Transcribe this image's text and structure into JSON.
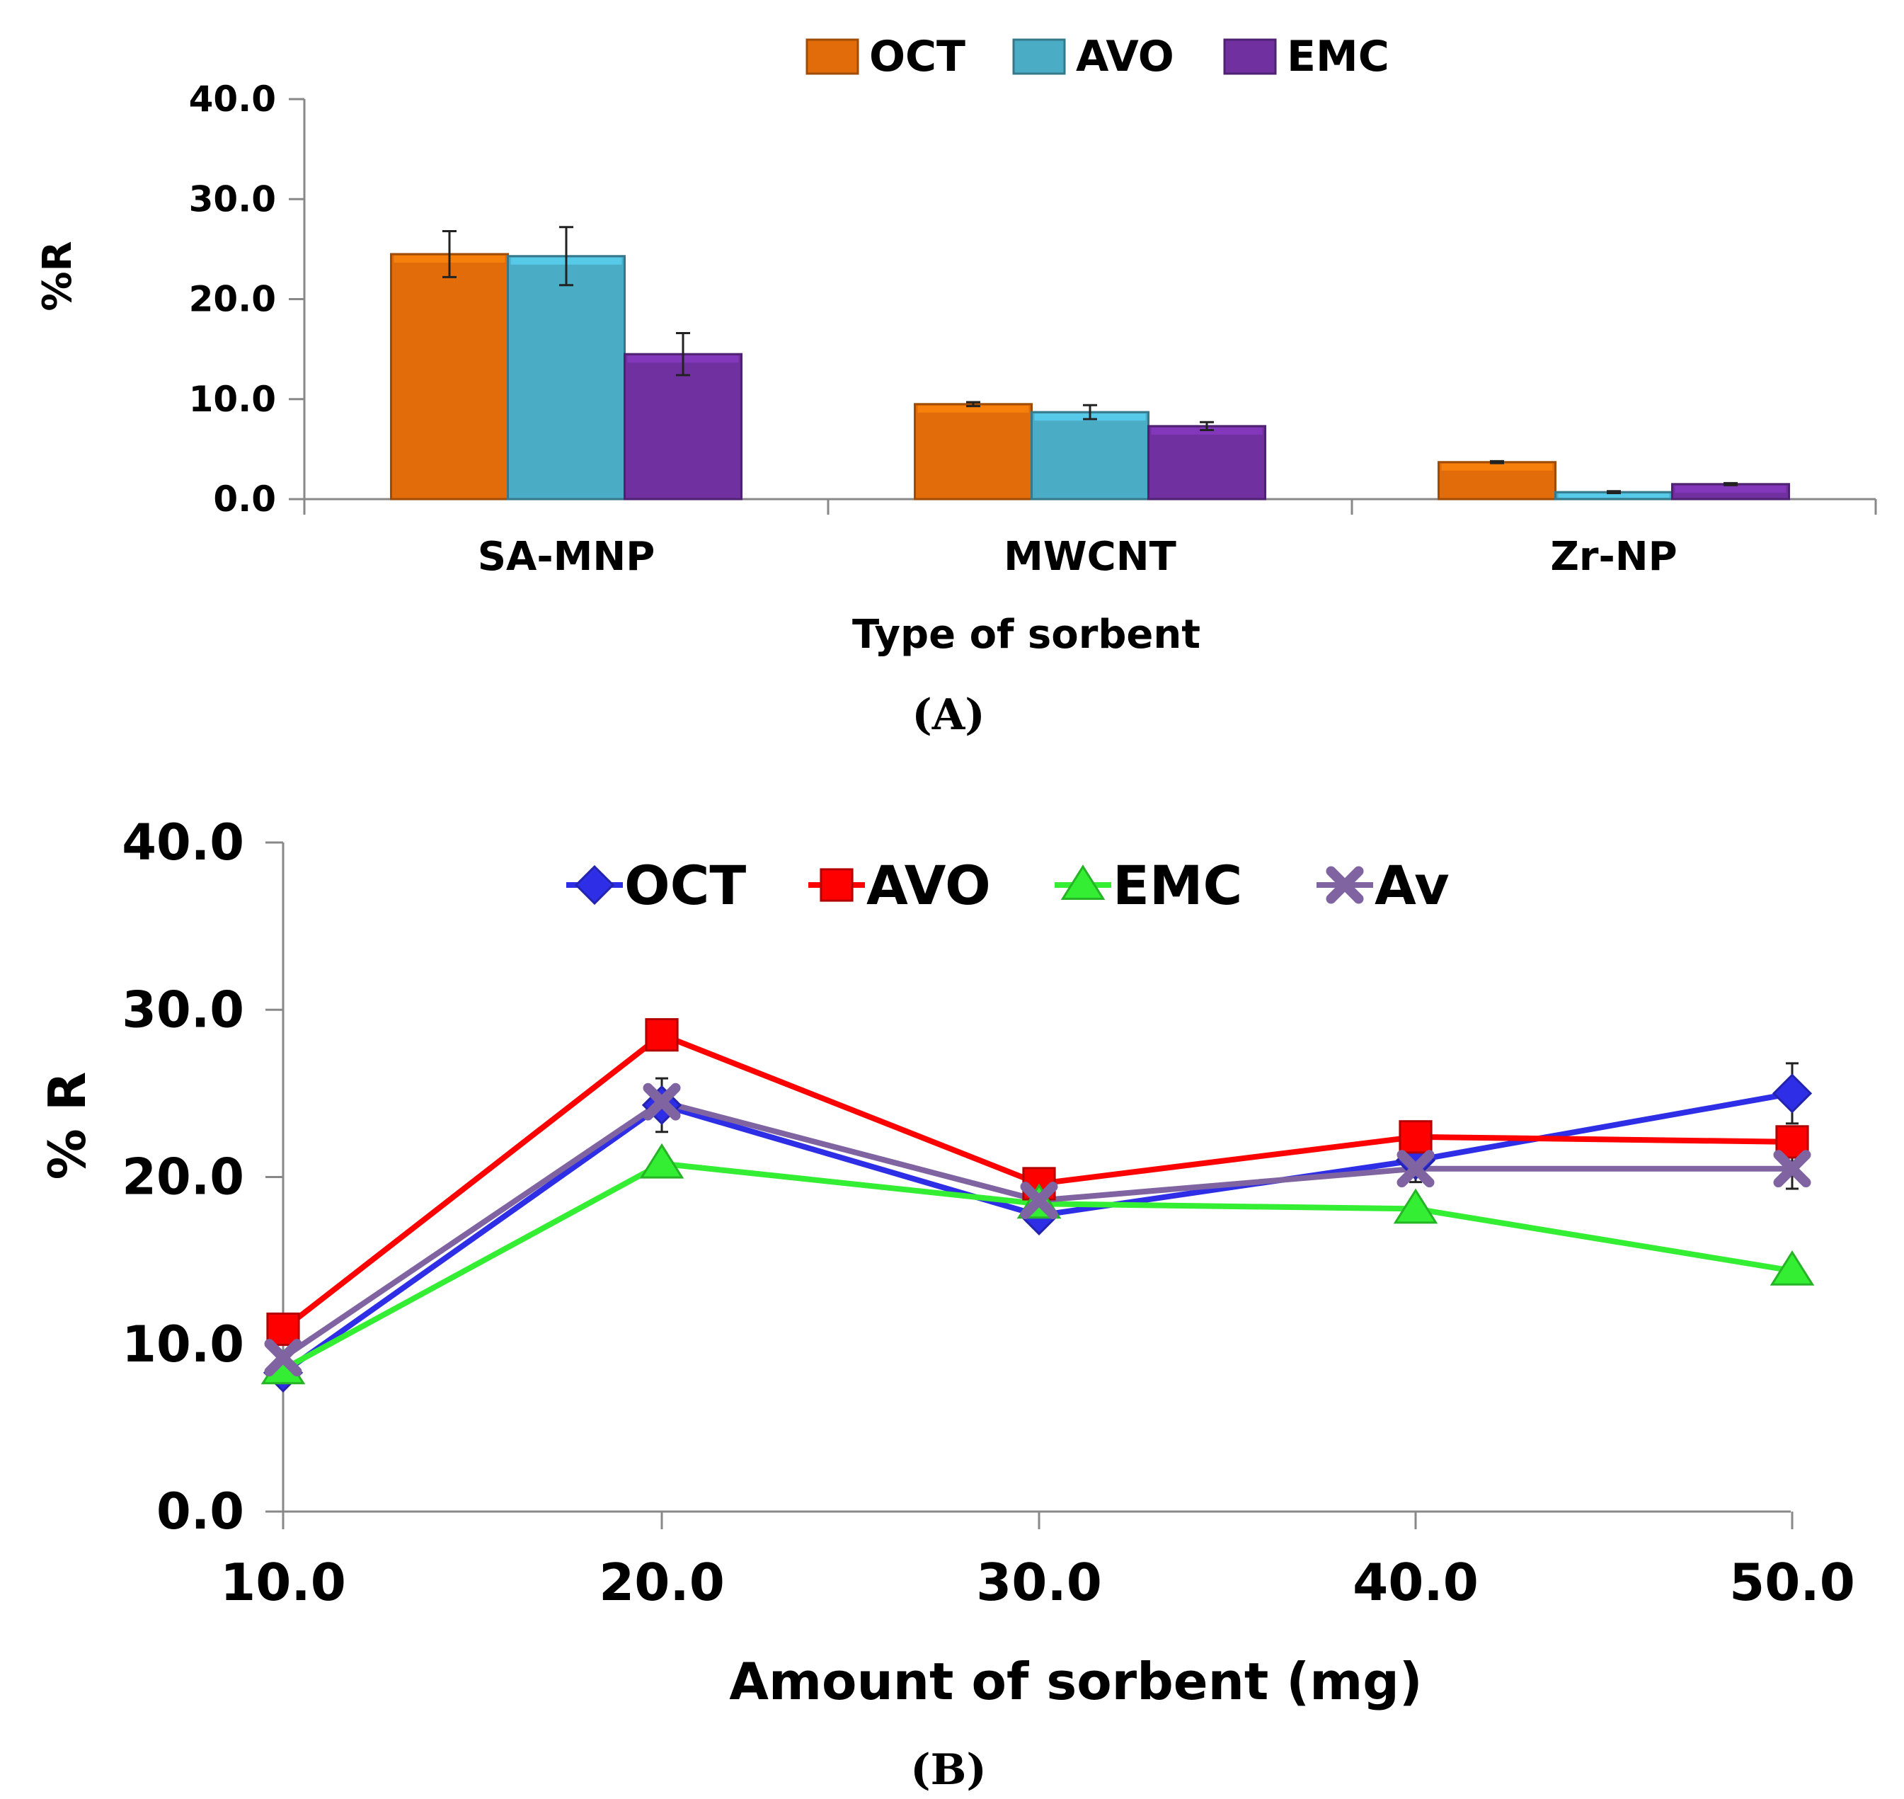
{
  "chart_data": [
    {
      "type": "bar",
      "panel_label": "(A)",
      "xlabel": "Type of sorbent",
      "ylabel": "%R",
      "ylim": [
        0,
        40
      ],
      "yticks": [
        "0.0",
        "10.0",
        "20.0",
        "30.0",
        "40.0"
      ],
      "categories": [
        "SA-MNP",
        "MWCNT",
        "Zr-NP"
      ],
      "series": [
        {
          "name": "OCT",
          "color": "#E36C0A",
          "values": [
            24.5,
            9.5,
            3.7
          ],
          "errors": [
            2.3,
            0.2,
            0.1
          ]
        },
        {
          "name": "AVO",
          "color": "#4BACC6",
          "values": [
            24.3,
            8.7,
            0.7
          ],
          "errors": [
            2.9,
            0.7,
            0.1
          ]
        },
        {
          "name": "EMC",
          "color": "#7030A0",
          "values": [
            14.5,
            7.3,
            1.5
          ],
          "errors": [
            2.1,
            0.4,
            0.1
          ]
        }
      ],
      "legend_position": "top"
    },
    {
      "type": "line",
      "panel_label": "(B)",
      "xlabel": "Amount of sorbent (mg)",
      "ylabel": "% R",
      "ylim": [
        0,
        40
      ],
      "xlim": [
        10,
        50
      ],
      "yticks": [
        "0.0",
        "10.0",
        "20.0",
        "30.0",
        "40.0"
      ],
      "xticks": [
        "10.0",
        "20.0",
        "30.0",
        "40.0",
        "50.0"
      ],
      "x": [
        10,
        20,
        30,
        40,
        50
      ],
      "series": [
        {
          "name": "OCT",
          "color": "#2E2EE6",
          "marker": "diamond",
          "values": [
            8.3,
            24.3,
            17.7,
            21.0,
            25.0
          ],
          "errors": [
            0,
            1.6,
            0,
            0,
            1.8
          ]
        },
        {
          "name": "AVO",
          "color": "#FF0000",
          "marker": "square",
          "values": [
            10.9,
            28.5,
            19.6,
            22.4,
            22.1
          ],
          "errors": [
            0,
            0,
            0,
            0,
            0
          ]
        },
        {
          "name": "EMC",
          "color": "#33EE33",
          "marker": "triangle",
          "values": [
            8.5,
            20.8,
            18.4,
            18.1,
            14.4
          ],
          "errors": [
            0,
            0,
            0,
            0,
            0
          ]
        },
        {
          "name": "Av",
          "color": "#8064A2",
          "marker": "x",
          "values": [
            9.2,
            24.5,
            18.6,
            20.5,
            20.5
          ],
          "errors": [
            0,
            0,
            0,
            0.8,
            1.2
          ]
        }
      ],
      "legend_position": "top"
    }
  ]
}
